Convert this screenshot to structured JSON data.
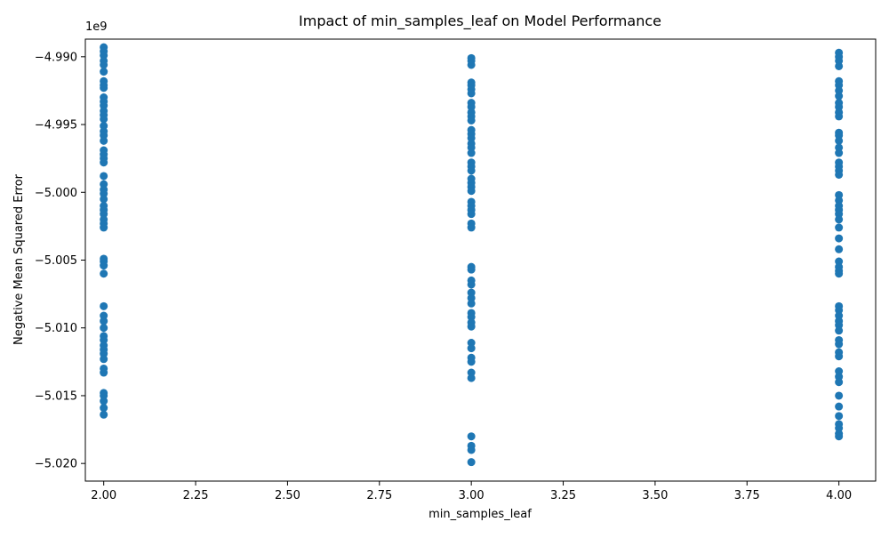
{
  "chart_data": {
    "type": "scatter",
    "title": "Impact of min_samples_leaf on Model Performance",
    "xlabel": "min_samples_leaf",
    "ylabel": "Negative Mean Squared Error",
    "y_offset_label": "1e9",
    "xlim": [
      1.95,
      4.1
    ],
    "ylim": [
      -5.0213,
      -4.9887
    ],
    "y_scale_factor": 1000000000,
    "x_ticks": [
      2.0,
      2.25,
      2.5,
      2.75,
      3.0,
      3.25,
      3.5,
      3.75,
      4.0
    ],
    "x_tick_labels": [
      "2.00",
      "2.25",
      "2.50",
      "2.75",
      "3.00",
      "3.25",
      "3.50",
      "3.75",
      "4.00"
    ],
    "y_ticks": [
      -4.99,
      -4.995,
      -5.0,
      -5.005,
      -5.01,
      -5.015,
      -5.02
    ],
    "y_tick_labels": [
      "−4.990",
      "−4.995",
      "−5.000",
      "−5.005",
      "−5.010",
      "−5.015",
      "−5.020"
    ],
    "grid": false,
    "marker_color": "#1f77b4",
    "points": [
      {
        "x": 2,
        "y": -4.9893
      },
      {
        "x": 2,
        "y": -4.9896
      },
      {
        "x": 2,
        "y": -4.9899
      },
      {
        "x": 2,
        "y": -4.9903
      },
      {
        "x": 2,
        "y": -4.9906
      },
      {
        "x": 2,
        "y": -4.9911
      },
      {
        "x": 2,
        "y": -4.9918
      },
      {
        "x": 2,
        "y": -4.9921
      },
      {
        "x": 2,
        "y": -4.9923
      },
      {
        "x": 2,
        "y": -4.993
      },
      {
        "x": 2,
        "y": -4.9933
      },
      {
        "x": 2,
        "y": -4.9936
      },
      {
        "x": 2,
        "y": -4.994
      },
      {
        "x": 2,
        "y": -4.9943
      },
      {
        "x": 2,
        "y": -4.9946
      },
      {
        "x": 2,
        "y": -4.9951
      },
      {
        "x": 2,
        "y": -4.9955
      },
      {
        "x": 2,
        "y": -4.9958
      },
      {
        "x": 2,
        "y": -4.9962
      },
      {
        "x": 2,
        "y": -4.9969
      },
      {
        "x": 2,
        "y": -4.9972
      },
      {
        "x": 2,
        "y": -4.9975
      },
      {
        "x": 2,
        "y": -4.9978
      },
      {
        "x": 2,
        "y": -4.9988
      },
      {
        "x": 2,
        "y": -4.9994
      },
      {
        "x": 2,
        "y": -4.9998
      },
      {
        "x": 2,
        "y": -5.0001
      },
      {
        "x": 2,
        "y": -5.0005
      },
      {
        "x": 2,
        "y": -5.001
      },
      {
        "x": 2,
        "y": -5.0013
      },
      {
        "x": 2,
        "y": -5.0016
      },
      {
        "x": 2,
        "y": -5.002
      },
      {
        "x": 2,
        "y": -5.0023
      },
      {
        "x": 2,
        "y": -5.0026
      },
      {
        "x": 2,
        "y": -5.0049
      },
      {
        "x": 2,
        "y": -5.0051
      },
      {
        "x": 2,
        "y": -5.0054
      },
      {
        "x": 2,
        "y": -5.006
      },
      {
        "x": 2,
        "y": -5.0084
      },
      {
        "x": 2,
        "y": -5.0091
      },
      {
        "x": 2,
        "y": -5.0095
      },
      {
        "x": 2,
        "y": -5.01
      },
      {
        "x": 2,
        "y": -5.0106
      },
      {
        "x": 2,
        "y": -5.0109
      },
      {
        "x": 2,
        "y": -5.0113
      },
      {
        "x": 2,
        "y": -5.0116
      },
      {
        "x": 2,
        "y": -5.0119
      },
      {
        "x": 2,
        "y": -5.0123
      },
      {
        "x": 2,
        "y": -5.013
      },
      {
        "x": 2,
        "y": -5.0133
      },
      {
        "x": 2,
        "y": -5.0148
      },
      {
        "x": 2,
        "y": -5.015
      },
      {
        "x": 2,
        "y": -5.0154
      },
      {
        "x": 2,
        "y": -5.0159
      },
      {
        "x": 2,
        "y": -5.0164
      },
      {
        "x": 3,
        "y": -4.9901
      },
      {
        "x": 3,
        "y": -4.9903
      },
      {
        "x": 3,
        "y": -4.9906
      },
      {
        "x": 3,
        "y": -4.9919
      },
      {
        "x": 3,
        "y": -4.9921
      },
      {
        "x": 3,
        "y": -4.9924
      },
      {
        "x": 3,
        "y": -4.9927
      },
      {
        "x": 3,
        "y": -4.9934
      },
      {
        "x": 3,
        "y": -4.9937
      },
      {
        "x": 3,
        "y": -4.9941
      },
      {
        "x": 3,
        "y": -4.9944
      },
      {
        "x": 3,
        "y": -4.9947
      },
      {
        "x": 3,
        "y": -4.9954
      },
      {
        "x": 3,
        "y": -4.9957
      },
      {
        "x": 3,
        "y": -4.996
      },
      {
        "x": 3,
        "y": -4.9964
      },
      {
        "x": 3,
        "y": -4.9967
      },
      {
        "x": 3,
        "y": -4.9971
      },
      {
        "x": 3,
        "y": -4.9978
      },
      {
        "x": 3,
        "y": -4.9981
      },
      {
        "x": 3,
        "y": -4.9984
      },
      {
        "x": 3,
        "y": -4.999
      },
      {
        "x": 3,
        "y": -4.9993
      },
      {
        "x": 3,
        "y": -4.9996
      },
      {
        "x": 3,
        "y": -4.9999
      },
      {
        "x": 3,
        "y": -5.0007
      },
      {
        "x": 3,
        "y": -5.001
      },
      {
        "x": 3,
        "y": -5.0013
      },
      {
        "x": 3,
        "y": -5.0016
      },
      {
        "x": 3,
        "y": -5.0023
      },
      {
        "x": 3,
        "y": -5.0026
      },
      {
        "x": 3,
        "y": -5.0055
      },
      {
        "x": 3,
        "y": -5.0057
      },
      {
        "x": 3,
        "y": -5.0065
      },
      {
        "x": 3,
        "y": -5.0068
      },
      {
        "x": 3,
        "y": -5.0074
      },
      {
        "x": 3,
        "y": -5.0078
      },
      {
        "x": 3,
        "y": -5.0082
      },
      {
        "x": 3,
        "y": -5.0089
      },
      {
        "x": 3,
        "y": -5.0092
      },
      {
        "x": 3,
        "y": -5.0096
      },
      {
        "x": 3,
        "y": -5.0099
      },
      {
        "x": 3,
        "y": -5.0111
      },
      {
        "x": 3,
        "y": -5.0115
      },
      {
        "x": 3,
        "y": -5.0122
      },
      {
        "x": 3,
        "y": -5.0125
      },
      {
        "x": 3,
        "y": -5.0133
      },
      {
        "x": 3,
        "y": -5.0137
      },
      {
        "x": 3,
        "y": -5.018
      },
      {
        "x": 3,
        "y": -5.0187
      },
      {
        "x": 3,
        "y": -5.019
      },
      {
        "x": 3,
        "y": -5.0199
      },
      {
        "x": 4,
        "y": -4.9897
      },
      {
        "x": 4,
        "y": -4.99
      },
      {
        "x": 4,
        "y": -4.9903
      },
      {
        "x": 4,
        "y": -4.9907
      },
      {
        "x": 4,
        "y": -4.9918
      },
      {
        "x": 4,
        "y": -4.9921
      },
      {
        "x": 4,
        "y": -4.9925
      },
      {
        "x": 4,
        "y": -4.9929
      },
      {
        "x": 4,
        "y": -4.9934
      },
      {
        "x": 4,
        "y": -4.9937
      },
      {
        "x": 4,
        "y": -4.9941
      },
      {
        "x": 4,
        "y": -4.9944
      },
      {
        "x": 4,
        "y": -4.9956
      },
      {
        "x": 4,
        "y": -4.9958
      },
      {
        "x": 4,
        "y": -4.9962
      },
      {
        "x": 4,
        "y": -4.9967
      },
      {
        "x": 4,
        "y": -4.9971
      },
      {
        "x": 4,
        "y": -4.9978
      },
      {
        "x": 4,
        "y": -4.9981
      },
      {
        "x": 4,
        "y": -4.9984
      },
      {
        "x": 4,
        "y": -4.9987
      },
      {
        "x": 4,
        "y": -5.0002
      },
      {
        "x": 4,
        "y": -5.0006
      },
      {
        "x": 4,
        "y": -5.001
      },
      {
        "x": 4,
        "y": -5.0013
      },
      {
        "x": 4,
        "y": -5.0016
      },
      {
        "x": 4,
        "y": -5.002
      },
      {
        "x": 4,
        "y": -5.0026
      },
      {
        "x": 4,
        "y": -5.0034
      },
      {
        "x": 4,
        "y": -5.0042
      },
      {
        "x": 4,
        "y": -5.0051
      },
      {
        "x": 4,
        "y": -5.0055
      },
      {
        "x": 4,
        "y": -5.0058
      },
      {
        "x": 4,
        "y": -5.006
      },
      {
        "x": 4,
        "y": -5.0084
      },
      {
        "x": 4,
        "y": -5.0087
      },
      {
        "x": 4,
        "y": -5.0091
      },
      {
        "x": 4,
        "y": -5.0095
      },
      {
        "x": 4,
        "y": -5.0098
      },
      {
        "x": 4,
        "y": -5.0102
      },
      {
        "x": 4,
        "y": -5.0109
      },
      {
        "x": 4,
        "y": -5.0112
      },
      {
        "x": 4,
        "y": -5.0118
      },
      {
        "x": 4,
        "y": -5.0121
      },
      {
        "x": 4,
        "y": -5.0132
      },
      {
        "x": 4,
        "y": -5.0136
      },
      {
        "x": 4,
        "y": -5.014
      },
      {
        "x": 4,
        "y": -5.015
      },
      {
        "x": 4,
        "y": -5.0158
      },
      {
        "x": 4,
        "y": -5.0165
      },
      {
        "x": 4,
        "y": -5.0171
      },
      {
        "x": 4,
        "y": -5.0174
      },
      {
        "x": 4,
        "y": -5.0178
      },
      {
        "x": 4,
        "y": -5.018
      }
    ]
  }
}
